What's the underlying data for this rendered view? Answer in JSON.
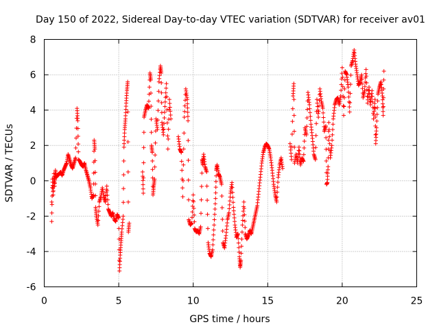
{
  "chart_data": {
    "type": "scatter",
    "title": "Day 150 of 2022, Sidereal Day-to-day VTEC variation (SDTVAR) for receiver av01",
    "xlabel": "GPS time / hours",
    "ylabel": "SDTVAR / TECUs",
    "xlim": [
      0,
      25
    ],
    "ylim": [
      -6,
      8
    ],
    "xticks": [
      0,
      5,
      10,
      15,
      20,
      25
    ],
    "xtick_labels": [
      "0",
      "5",
      "10",
      "15",
      "20",
      "25"
    ],
    "yticks": [
      -6,
      -4,
      -2,
      0,
      2,
      4,
      6,
      8
    ],
    "ytick_labels": [
      "-6",
      "-4",
      "-2",
      "0",
      "2",
      "4",
      "6",
      "8"
    ],
    "grid": true,
    "marker": "+",
    "color": "#ff0000",
    "series": [
      {
        "name": "av01",
        "points": [
          [
            0.5,
            -1.2
          ],
          [
            0.5,
            -2.3
          ],
          [
            0.55,
            0.1
          ],
          [
            0.6,
            -0.8
          ],
          [
            0.65,
            0.4
          ],
          [
            0.7,
            -0.3
          ],
          [
            0.75,
            0.6
          ],
          [
            0.8,
            0.2
          ],
          [
            0.9,
            0.3
          ],
          [
            1.0,
            0.4
          ],
          [
            1.1,
            0.5
          ],
          [
            1.2,
            0.3
          ],
          [
            1.3,
            0.6
          ],
          [
            1.4,
            0.8
          ],
          [
            1.5,
            1.0
          ],
          [
            1.6,
            1.5
          ],
          [
            1.7,
            1.2
          ],
          [
            1.8,
            0.9
          ],
          [
            1.9,
            0.7
          ],
          [
            2.0,
            1.0
          ],
          [
            2.1,
            1.3
          ],
          [
            2.2,
            4.1
          ],
          [
            2.25,
            3.4
          ],
          [
            2.3,
            1.2
          ],
          [
            2.4,
            1.1
          ],
          [
            2.5,
            0.9
          ],
          [
            2.6,
            0.8
          ],
          [
            2.7,
            1.0
          ],
          [
            2.8,
            0.6
          ],
          [
            2.9,
            0.3
          ],
          [
            3.0,
            0.0
          ],
          [
            3.1,
            -0.4
          ],
          [
            3.2,
            -1.0
          ],
          [
            3.3,
            -0.8
          ],
          [
            3.35,
            2.3
          ],
          [
            3.4,
            1.8
          ],
          [
            3.45,
            -1.5
          ],
          [
            3.5,
            -2.0
          ],
          [
            3.6,
            -2.5
          ],
          [
            3.7,
            -1.2
          ],
          [
            3.8,
            -0.9
          ],
          [
            3.9,
            -0.4
          ],
          [
            4.0,
            -0.9
          ],
          [
            4.1,
            -1.2
          ],
          [
            4.2,
            -0.3
          ],
          [
            4.3,
            -1.6
          ],
          [
            4.4,
            -1.8
          ],
          [
            4.5,
            -2.0
          ],
          [
            4.6,
            -1.8
          ],
          [
            4.7,
            -2.2
          ],
          [
            4.8,
            -2.3
          ],
          [
            4.9,
            -1.9
          ],
          [
            5.0,
            -2.1
          ],
          [
            5.05,
            -5.1
          ],
          [
            5.1,
            -4.2
          ],
          [
            5.15,
            -3.5
          ],
          [
            5.2,
            -2.9
          ],
          [
            5.3,
            -2.0
          ],
          [
            5.35,
            1.9
          ],
          [
            5.4,
            2.9
          ],
          [
            5.45,
            3.5
          ],
          [
            5.5,
            4.4
          ],
          [
            5.55,
            5.1
          ],
          [
            5.6,
            5.6
          ],
          [
            5.65,
            -2.9
          ],
          [
            5.7,
            -2.4
          ],
          [
            6.6,
            0.5
          ],
          [
            6.65,
            -0.7
          ],
          [
            6.7,
            3.6
          ],
          [
            6.8,
            4.0
          ],
          [
            6.9,
            4.3
          ],
          [
            7.0,
            4.1
          ],
          [
            7.1,
            6.1
          ],
          [
            7.15,
            5.7
          ],
          [
            7.2,
            2.0
          ],
          [
            7.25,
            1.6
          ],
          [
            7.3,
            -0.8
          ],
          [
            7.35,
            -0.3
          ],
          [
            7.4,
            0.1
          ],
          [
            7.5,
            3.5
          ],
          [
            7.6,
            2.9
          ],
          [
            7.7,
            5.6
          ],
          [
            7.8,
            6.5
          ],
          [
            7.85,
            6.1
          ],
          [
            7.9,
            3.3
          ],
          [
            8.0,
            2.6
          ],
          [
            8.1,
            4.2
          ],
          [
            8.2,
            5.5
          ],
          [
            8.3,
            1.8
          ],
          [
            8.4,
            4.6
          ],
          [
            8.5,
            3.5
          ],
          [
            9.0,
            2.5
          ],
          [
            9.1,
            1.8
          ],
          [
            9.2,
            1.6
          ],
          [
            9.3,
            -0.9
          ],
          [
            9.4,
            3.6
          ],
          [
            9.5,
            5.2
          ],
          [
            9.6,
            4.6
          ],
          [
            9.65,
            3.4
          ],
          [
            9.7,
            -2.2
          ],
          [
            9.8,
            -2.5
          ],
          [
            9.9,
            -2.4
          ],
          [
            10.0,
            -0.8
          ],
          [
            10.1,
            -2.7
          ],
          [
            10.2,
            -2.9
          ],
          [
            10.3,
            -2.8
          ],
          [
            10.4,
            -3.0
          ],
          [
            10.5,
            -2.6
          ],
          [
            10.6,
            1.2
          ],
          [
            10.65,
            0.9
          ],
          [
            10.7,
            1.5
          ],
          [
            10.8,
            0.8
          ],
          [
            10.9,
            0.5
          ],
          [
            11.0,
            -3.5
          ],
          [
            11.1,
            -4.1
          ],
          [
            11.2,
            -4.3
          ],
          [
            11.3,
            -3.9
          ],
          [
            11.4,
            -2.5
          ],
          [
            11.5,
            -1.0
          ],
          [
            11.55,
            0.6
          ],
          [
            11.6,
            0.9
          ],
          [
            11.7,
            0.4
          ],
          [
            11.8,
            0.2
          ],
          [
            11.9,
            -0.2
          ],
          [
            12.0,
            -3.5
          ],
          [
            12.1,
            -3.8
          ],
          [
            12.2,
            -3.1
          ],
          [
            12.3,
            -2.2
          ],
          [
            12.4,
            -1.8
          ],
          [
            12.5,
            -0.7
          ],
          [
            12.6,
            -0.1
          ],
          [
            12.7,
            -1.5
          ],
          [
            12.8,
            -2.5
          ],
          [
            12.9,
            -3.2
          ],
          [
            13.0,
            -3.0
          ],
          [
            13.1,
            -4.3
          ],
          [
            13.15,
            -4.9
          ],
          [
            13.2,
            -4.5
          ],
          [
            13.3,
            -2.5
          ],
          [
            13.4,
            -1.2
          ],
          [
            13.5,
            -3.0
          ],
          [
            13.6,
            -3.3
          ],
          [
            13.7,
            -3.1
          ],
          [
            13.8,
            -2.8
          ],
          [
            13.9,
            -3.0
          ],
          [
            14.0,
            -2.6
          ],
          [
            14.1,
            -2.2
          ],
          [
            14.2,
            -1.8
          ],
          [
            14.3,
            -1.4
          ],
          [
            14.4,
            -0.6
          ],
          [
            14.5,
            0.2
          ],
          [
            14.6,
            1.0
          ],
          [
            14.7,
            1.6
          ],
          [
            14.8,
            1.9
          ],
          [
            14.9,
            2.1
          ],
          [
            15.0,
            2.0
          ],
          [
            15.1,
            1.8
          ],
          [
            15.2,
            1.3
          ],
          [
            15.3,
            0.6
          ],
          [
            15.4,
            -0.2
          ],
          [
            15.5,
            -0.8
          ],
          [
            15.6,
            -1.2
          ],
          [
            15.7,
            0.2
          ],
          [
            15.8,
            0.9
          ],
          [
            15.9,
            1.3
          ],
          [
            16.0,
            0.7
          ],
          [
            16.5,
            2.1
          ],
          [
            16.6,
            1.2
          ],
          [
            16.7,
            4.8
          ],
          [
            16.75,
            5.5
          ],
          [
            16.8,
            1.0
          ],
          [
            16.9,
            1.5
          ],
          [
            17.0,
            1.0
          ],
          [
            17.1,
            1.9
          ],
          [
            17.2,
            0.9
          ],
          [
            17.3,
            1.3
          ],
          [
            17.4,
            1.1
          ],
          [
            17.5,
            3.0
          ],
          [
            17.6,
            2.6
          ],
          [
            17.7,
            5.0
          ],
          [
            17.8,
            4.3
          ],
          [
            17.9,
            3.2
          ],
          [
            18.0,
            2.4
          ],
          [
            18.1,
            1.5
          ],
          [
            18.2,
            1.2
          ],
          [
            18.3,
            4.6
          ],
          [
            18.4,
            3.6
          ],
          [
            18.5,
            5.2
          ],
          [
            18.6,
            4.5
          ],
          [
            18.7,
            4.1
          ],
          [
            18.8,
            2.8
          ],
          [
            18.9,
            3.1
          ],
          [
            18.95,
            -0.2
          ],
          [
            19.0,
            -0.1
          ],
          [
            19.05,
            0.8
          ],
          [
            19.1,
            3.3
          ],
          [
            19.2,
            1.3
          ],
          [
            19.3,
            2.0
          ],
          [
            19.4,
            3.5
          ],
          [
            19.5,
            4.3
          ],
          [
            19.6,
            4.6
          ],
          [
            19.7,
            4.7
          ],
          [
            19.8,
            4.3
          ],
          [
            19.9,
            4.8
          ],
          [
            20.0,
            6.4
          ],
          [
            20.1,
            3.7
          ],
          [
            20.2,
            6.2
          ],
          [
            20.3,
            6.0
          ],
          [
            20.4,
            5.3
          ],
          [
            20.5,
            3.9
          ],
          [
            20.6,
            6.5
          ],
          [
            20.7,
            6.8
          ],
          [
            20.8,
            7.4
          ],
          [
            20.9,
            6.6
          ],
          [
            21.0,
            6.0
          ],
          [
            21.1,
            5.4
          ],
          [
            21.2,
            5.6
          ],
          [
            21.3,
            6.0
          ],
          [
            21.4,
            4.7
          ],
          [
            21.5,
            5.1
          ],
          [
            21.6,
            6.3
          ],
          [
            21.7,
            4.4
          ],
          [
            21.8,
            5.3
          ],
          [
            21.9,
            4.3
          ],
          [
            22.0,
            5.1
          ],
          [
            22.1,
            3.5
          ],
          [
            22.2,
            4.6
          ],
          [
            22.25,
            2.1
          ],
          [
            22.3,
            3.0
          ],
          [
            22.4,
            4.9
          ],
          [
            22.5,
            5.3
          ],
          [
            22.6,
            5.6
          ],
          [
            22.7,
            4.8
          ],
          [
            22.75,
            3.7
          ],
          [
            22.8,
            6.2
          ]
        ]
      }
    ]
  }
}
